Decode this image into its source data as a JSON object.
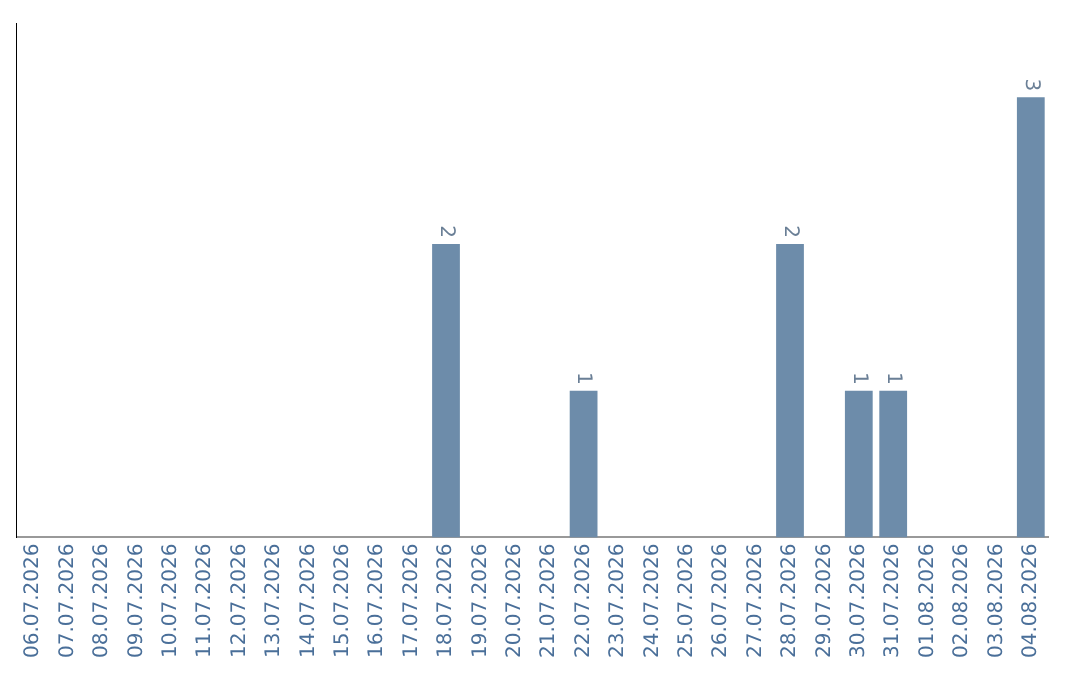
{
  "chart_data": {
    "type": "bar",
    "categories": [
      "06.07.2026",
      "07.07.2026",
      "08.07.2026",
      "09.07.2026",
      "10.07.2026",
      "11.07.2026",
      "12.07.2026",
      "13.07.2026",
      "14.07.2026",
      "15.07.2026",
      "16.07.2026",
      "17.07.2026",
      "18.07.2026",
      "19.07.2026",
      "20.07.2026",
      "21.07.2026",
      "22.07.2026",
      "23.07.2026",
      "24.07.2026",
      "25.07.2026",
      "26.07.2026",
      "27.07.2026",
      "28.07.2026",
      "29.07.2026",
      "30.07.2026",
      "31.07.2026",
      "01.08.2026",
      "02.08.2026",
      "03.08.2026",
      "04.08.2026"
    ],
    "values": [
      null,
      null,
      null,
      null,
      null,
      null,
      null,
      null,
      null,
      null,
      null,
      null,
      2,
      null,
      null,
      null,
      1,
      null,
      null,
      null,
      null,
      null,
      2,
      null,
      1,
      1,
      null,
      null,
      null,
      3
    ],
    "color": "#6d8caa",
    "data_labels": true,
    "grid": false,
    "legend": false,
    "tick_labels": "x"
  }
}
